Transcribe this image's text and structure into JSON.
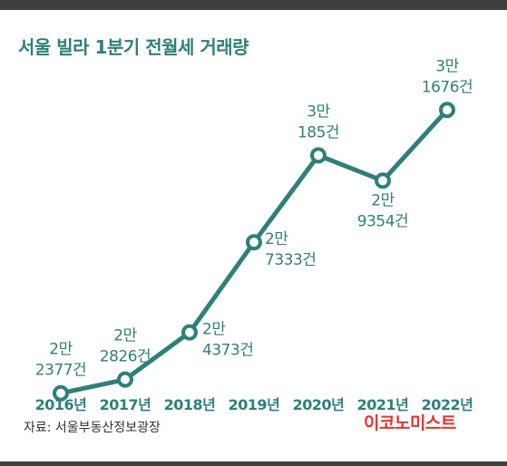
{
  "header": {
    "title": "서울 빌라 1분기 전월세 거래량"
  },
  "footer": {
    "source": "자료: 서울부동산정보광장",
    "brand": "이코노미스트"
  },
  "colors": {
    "line": "#2e8078",
    "marker_fill": "#ffffff",
    "label": "#2e8078",
    "axis_label": "#2e8078",
    "brand": "#e8312f",
    "bar": "#3f3f3f"
  },
  "chart_data": {
    "type": "line",
    "title": "서울 빌라 1분기 전월세 거래량",
    "xlabel": "",
    "ylabel": "",
    "categories": [
      "2016년",
      "2017년",
      "2018년",
      "2019년",
      "2020년",
      "2021년",
      "2022년"
    ],
    "values": [
      22377,
      22826,
      24373,
      27333,
      30185,
      29354,
      31676
    ],
    "data_labels": [
      [
        "2만",
        "2377건"
      ],
      [
        "2만",
        "2826건"
      ],
      [
        "2만",
        "4373건"
      ],
      [
        "2만",
        "7333건"
      ],
      [
        "3만",
        "185건"
      ],
      [
        "2만",
        "9354건"
      ],
      [
        "3만",
        "1676건"
      ]
    ],
    "ylim": [
      21000,
      33500
    ],
    "grid": false,
    "legend": "none"
  }
}
